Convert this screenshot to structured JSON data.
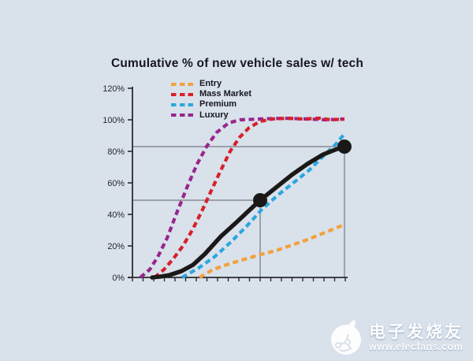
{
  "chart_data": {
    "type": "line",
    "title": "Cumulative % of new vehicle sales w/ tech",
    "xlabel": "",
    "ylabel": "",
    "y_axis": {
      "min": 0,
      "max": 120,
      "unit": "%",
      "ticks": [
        "0%",
        "20%",
        "40%",
        "60%",
        "80%",
        "100%",
        "120%"
      ]
    },
    "x_axis": {
      "labels": [],
      "minor_tick_count": 21
    },
    "grid": false,
    "legend_position": "top-left-inside",
    "legend": [
      {
        "label": "Entry",
        "color": "#F2A13D"
      },
      {
        "label": "Mass Market",
        "color": "#D6212B"
      },
      {
        "label": "Premium",
        "color": "#2BA7DE"
      },
      {
        "label": "Luxury",
        "color": "#97268C"
      }
    ],
    "series": [
      {
        "name": "Entry",
        "color": "#F2A13D",
        "style": "dashed",
        "points": [
          [
            31.5,
            0
          ],
          [
            37.8,
            5
          ],
          [
            45.2,
            8.5
          ],
          [
            52.6,
            11.5
          ],
          [
            60,
            14.5
          ],
          [
            67.4,
            17
          ],
          [
            74.8,
            20.5
          ],
          [
            82.2,
            24
          ],
          [
            89.6,
            28
          ],
          [
            99.6,
            33.5
          ]
        ]
      },
      {
        "name": "Mass Market",
        "color": "#D6212B",
        "style": "dashed",
        "points": [
          [
            10.4,
            0
          ],
          [
            14.8,
            5
          ],
          [
            19.3,
            12
          ],
          [
            23.7,
            20
          ],
          [
            28.1,
            30
          ],
          [
            32.6,
            42
          ],
          [
            37,
            55
          ],
          [
            41.5,
            68
          ],
          [
            45.9,
            80
          ],
          [
            50.4,
            89
          ],
          [
            54.8,
            95
          ],
          [
            60,
            99
          ],
          [
            65.6,
            100.5
          ],
          [
            73,
            101
          ],
          [
            80.4,
            100.5
          ],
          [
            87.8,
            101
          ],
          [
            93.3,
            100
          ],
          [
            99.6,
            100.5
          ]
        ]
      },
      {
        "name": "Premium",
        "color": "#2BA7DE",
        "style": "dashed",
        "points": [
          [
            23.3,
            0
          ],
          [
            31.1,
            6
          ],
          [
            38.5,
            13
          ],
          [
            45.9,
            22
          ],
          [
            53.3,
            32
          ],
          [
            60.7,
            43
          ],
          [
            68.1,
            52
          ],
          [
            75.6,
            60
          ],
          [
            83,
            68
          ],
          [
            90.4,
            78
          ],
          [
            95.2,
            84
          ],
          [
            99.6,
            91
          ]
        ]
      },
      {
        "name": "Luxury",
        "color": "#97268C",
        "style": "dashed",
        "points": [
          [
            3.7,
            0
          ],
          [
            8.1,
            5
          ],
          [
            11.9,
            13
          ],
          [
            16.3,
            25
          ],
          [
            21.1,
            42
          ],
          [
            25.9,
            58
          ],
          [
            30.4,
            72
          ],
          [
            34.8,
            83
          ],
          [
            39.6,
            92
          ],
          [
            45.2,
            98
          ],
          [
            50.7,
            100
          ],
          [
            60,
            100.5
          ],
          [
            71.1,
            101
          ],
          [
            82.2,
            100.5
          ],
          [
            91.5,
            100
          ],
          [
            99.6,
            100.5
          ]
        ]
      },
      {
        "name": "highlight-curve",
        "color": "#1B1918",
        "style": "solid",
        "points": [
          [
            9.3,
            0
          ],
          [
            13,
            0.5
          ],
          [
            17.4,
            1.5
          ],
          [
            23,
            4
          ],
          [
            28.5,
            8
          ],
          [
            34.1,
            15
          ],
          [
            41.5,
            26
          ],
          [
            48.9,
            35
          ],
          [
            54.4,
            42
          ],
          [
            60,
            49
          ],
          [
            67.4,
            57
          ],
          [
            74.8,
            65
          ],
          [
            82.2,
            72
          ],
          [
            89.6,
            78
          ],
          [
            95.2,
            81
          ],
          [
            99.6,
            83
          ]
        ]
      }
    ],
    "markers": [
      {
        "x": 60,
        "value": 49
      },
      {
        "x": 99.6,
        "value": 83
      }
    ]
  },
  "colors": {
    "background": "#D9E1EB",
    "axis": "#2B2B30",
    "tick_label": "#26262e",
    "reference_line": "#9BA1A8",
    "marker_dot": "#1B1918"
  },
  "watermark": {
    "brand": "电子发烧友",
    "url": "www.elecfans.com"
  }
}
